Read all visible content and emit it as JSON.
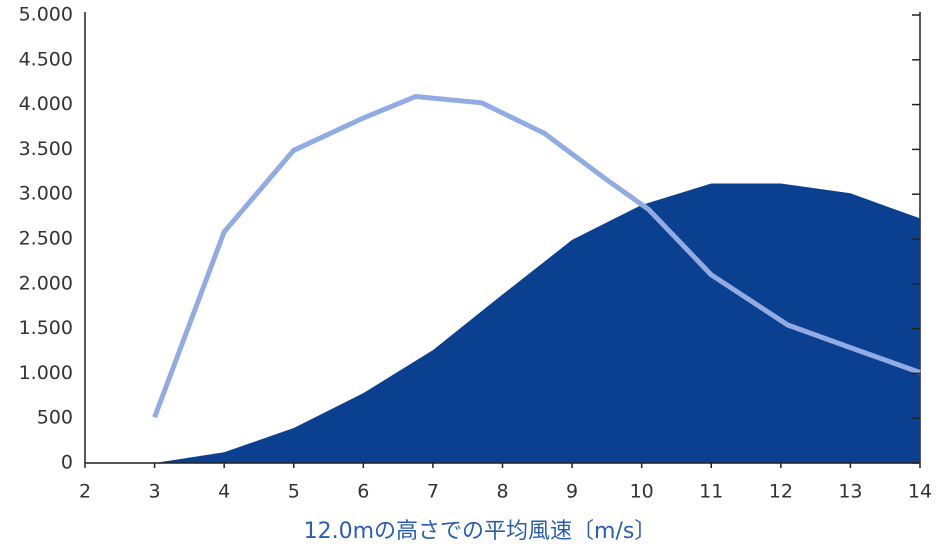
{
  "chart_data": {
    "type": "line",
    "x_label": "12.0mの高さでの平均風速〔m/s〕",
    "xlim": [
      2,
      14
    ],
    "xticks": [
      2,
      3,
      4,
      5,
      6,
      7,
      8,
      9,
      10,
      11,
      12,
      13,
      14
    ],
    "ylim": [
      0,
      5000
    ],
    "yticks": [
      0,
      500,
      {
        "value": 1000,
        "label": "1.000"
      },
      {
        "value": 1500,
        "label": "1.500"
      },
      {
        "value": 2000,
        "label": "2.000"
      },
      {
        "value": 2500,
        "label": "2.500"
      },
      {
        "value": 3000,
        "label": "3.000"
      },
      {
        "value": 3500,
        "label": "3.500"
      },
      {
        "value": 4000,
        "label": "4.000"
      },
      {
        "value": 4500,
        "label": "4.500"
      },
      {
        "value": 5000,
        "label": "5.000"
      }
    ],
    "series": [
      {
        "style": "area",
        "color": "#0b3f8f",
        "x": [
          3,
          4,
          5,
          6,
          7,
          8,
          9,
          10,
          11,
          12,
          13,
          14
        ],
        "values": [
          0,
          120,
          390,
          780,
          1260,
          1880,
          2490,
          2880,
          3120,
          3120,
          3010,
          2730
        ]
      },
      {
        "style": "line",
        "color": "#93abe3",
        "x": [
          3,
          4,
          5,
          6,
          6.75,
          7.7,
          8.6,
          9.5,
          10.1,
          11,
          12.1,
          13.1,
          14
        ],
        "values": [
          510,
          2580,
          3490,
          3850,
          4090,
          4020,
          3680,
          3160,
          2830,
          2100,
          1540,
          1260,
          1010
        ]
      }
    ]
  }
}
